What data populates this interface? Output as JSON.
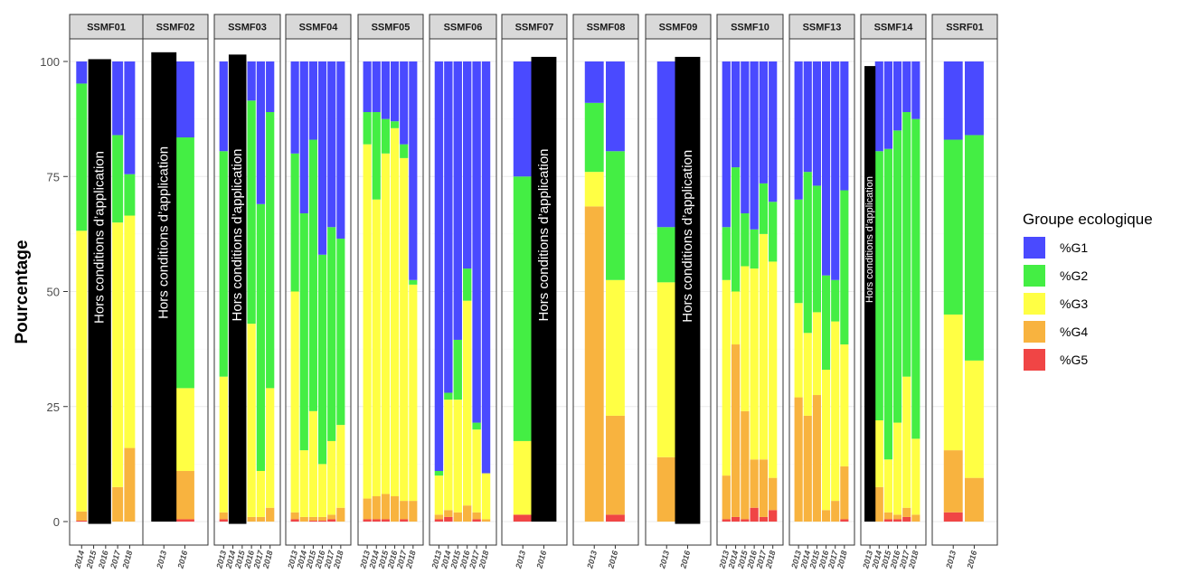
{
  "chart_data": {
    "type": "bar",
    "stacked": true,
    "faceted": true,
    "ylabel": "Pourcentage",
    "xlabel": "",
    "ylim": [
      0,
      100
    ],
    "yticks": [
      0,
      25,
      50,
      75,
      100
    ],
    "grid": true,
    "legend": {
      "title": "Groupe ecologique",
      "placement": "right",
      "entries": [
        {
          "name": "%G1",
          "color": "#4a4aff"
        },
        {
          "name": "%G2",
          "color": "#44ee44"
        },
        {
          "name": "%G3",
          "color": "#ffff44"
        },
        {
          "name": "%G4",
          "color": "#f8b33f"
        },
        {
          "name": "%G5",
          "color": "#f04545"
        }
      ]
    },
    "facets": [
      {
        "label": "SSMF01",
        "years": [
          "2014",
          "2015",
          "2016",
          "2017",
          "2018"
        ],
        "G1": [
          4.8,
          0,
          0,
          16,
          24.5
        ],
        "G2": [
          32,
          0,
          0,
          19,
          9
        ],
        "G3": [
          61,
          0,
          0,
          57.5,
          50.5
        ],
        "G4": [
          2,
          0,
          0,
          7.5,
          16
        ],
        "G5": [
          0.2,
          0,
          0,
          0,
          0
        ],
        "overlay": {
          "text": "Hors conditions d’application",
          "from": 1,
          "to": 2,
          "top": 100.5,
          "bottom": -0.5
        }
      },
      {
        "label": "SSMF02",
        "years": [
          "2013",
          "2016"
        ],
        "G1": [
          0,
          16.5
        ],
        "G2": [
          0,
          54.5
        ],
        "G3": [
          0,
          18
        ],
        "G4": [
          0,
          10.5
        ],
        "G5": [
          0,
          0.5
        ],
        "overlay": {
          "text": "Hors conditions d’application",
          "from": 0,
          "to": 0,
          "top": 102,
          "bottom": 0
        }
      },
      {
        "label": "SSMF03",
        "years": [
          "2013",
          "2014",
          "2015",
          "2016",
          "2017",
          "2018"
        ],
        "G1": [
          19.5,
          0,
          0,
          8.5,
          31,
          11
        ],
        "G2": [
          49,
          0,
          0,
          48.5,
          58,
          60
        ],
        "G3": [
          29.5,
          0,
          0,
          42,
          10,
          26
        ],
        "G4": [
          1.5,
          0,
          0,
          1,
          1,
          3
        ],
        "G5": [
          0.5,
          0,
          0,
          0,
          0,
          0
        ],
        "overlay": {
          "text": "Hors conditions d’application",
          "from": 1,
          "to": 2,
          "top": 101.5,
          "bottom": -0.5
        }
      },
      {
        "label": "SSMF04",
        "years": [
          "2013",
          "2014",
          "2015",
          "2016",
          "2017",
          "2018"
        ],
        "G1": [
          20,
          33,
          17,
          42,
          36,
          38.5
        ],
        "G2": [
          30,
          51.5,
          59,
          45.5,
          46.5,
          40.5
        ],
        "G3": [
          48,
          14.5,
          23,
          11.5,
          16,
          18
        ],
        "G4": [
          1.5,
          1,
          0.8,
          0.8,
          1,
          3
        ],
        "G5": [
          0.5,
          0,
          0.2,
          0.2,
          0.5,
          0
        ],
        "overlay": null
      },
      {
        "label": "SSMF05",
        "years": [
          "2013",
          "2014",
          "2015",
          "2016",
          "2017",
          "2018"
        ],
        "G1": [
          11,
          11,
          12.5,
          13,
          18,
          47.5
        ],
        "G2": [
          7,
          19,
          7.5,
          1.5,
          3,
          1
        ],
        "G3": [
          77,
          64.5,
          74,
          80,
          74.5,
          47
        ],
        "G4": [
          4.5,
          5,
          5.5,
          5.5,
          4,
          4.5
        ],
        "G5": [
          0.5,
          0.5,
          0.5,
          0,
          0.5,
          0
        ],
        "overlay": null
      },
      {
        "label": "SSMF06",
        "years": [
          "2013",
          "2014",
          "2015",
          "2016",
          "2017",
          "2018"
        ],
        "G1": [
          89,
          72,
          60.5,
          45,
          78.5,
          89.5
        ],
        "G2": [
          1,
          1.5,
          13,
          7,
          1.5,
          0
        ],
        "G3": [
          8.5,
          24,
          24.5,
          44.5,
          18,
          10
        ],
        "G4": [
          1,
          1.5,
          2,
          3.5,
          1.5,
          0.5
        ],
        "G5": [
          0.5,
          1,
          0,
          0,
          0.5,
          0
        ],
        "overlay": null
      },
      {
        "label": "SSMF07",
        "years": [
          "2013",
          "2016"
        ],
        "G1": [
          25,
          0
        ],
        "G2": [
          57.5,
          0
        ],
        "G3": [
          16,
          0
        ],
        "G4": [
          0,
          0
        ],
        "G5": [
          1.5,
          0
        ],
        "overlay": {
          "text": "Hors conditions d’application",
          "from": 1,
          "to": 1,
          "top": 101,
          "bottom": 0
        }
      },
      {
        "label": "SSMF08",
        "years": [
          "2013",
          "2016"
        ],
        "G1": [
          9,
          19.5
        ],
        "G2": [
          15,
          28
        ],
        "G3": [
          7.5,
          29.5
        ],
        "G4": [
          68.5,
          21.5
        ],
        "G5": [
          0,
          1.5
        ],
        "overlay": null
      },
      {
        "label": "SSMF09",
        "years": [
          "2013",
          "2016"
        ],
        "G1": [
          36,
          0
        ],
        "G2": [
          12,
          0
        ],
        "G3": [
          38,
          0
        ],
        "G4": [
          14,
          0
        ],
        "G5": [
          0,
          0
        ],
        "overlay": {
          "text": "Hors conditions d’application",
          "from": 1,
          "to": 1,
          "top": 101,
          "bottom": -0.5
        }
      },
      {
        "label": "SSMF10",
        "years": [
          "2013",
          "2014",
          "2015",
          "2016",
          "2017",
          "2018"
        ],
        "G1": [
          36,
          23,
          33,
          36.5,
          26.5,
          30.5
        ],
        "G2": [
          11.5,
          27,
          11.5,
          8.5,
          11,
          13
        ],
        "G3": [
          42.5,
          11.5,
          31.5,
          41.5,
          49,
          47
        ],
        "G4": [
          9.5,
          37.5,
          23.5,
          10.5,
          12.5,
          7
        ],
        "G5": [
          0.5,
          1,
          0.5,
          3,
          1,
          2.5
        ],
        "overlay": null
      },
      {
        "label": "SSMF13",
        "years": [
          "2013",
          "2014",
          "2015",
          "2016",
          "2017",
          "2018"
        ],
        "G1": [
          30,
          24,
          27,
          46.5,
          47.5,
          28
        ],
        "G2": [
          22.5,
          35,
          27.5,
          20.5,
          9,
          33.5
        ],
        "G3": [
          20.5,
          18,
          18,
          30.5,
          39,
          26.5
        ],
        "G4": [
          27,
          23,
          27.5,
          2.5,
          4.5,
          11.5
        ],
        "G5": [
          0,
          0,
          0,
          0,
          0,
          0.5
        ],
        "overlay": null
      },
      {
        "label": "SSMF14",
        "years": [
          "2013",
          "2014",
          "2015",
          "2016",
          "2017",
          "2018"
        ],
        "G1": [
          0,
          19.5,
          19,
          15,
          11,
          12.5
        ],
        "G2": [
          0,
          58.5,
          67.5,
          63.5,
          57.5,
          69.5
        ],
        "G3": [
          0,
          14.5,
          11.5,
          20,
          28.5,
          16.5
        ],
        "G4": [
          0,
          7.5,
          1.5,
          1,
          2,
          1.5
        ],
        "G5": [
          0,
          0,
          0.5,
          0.5,
          1,
          0
        ],
        "overlay": {
          "text": "Hors conditions d’application",
          "from": 0,
          "to": 0,
          "top": 99,
          "bottom": 0
        }
      },
      {
        "label": "SSRF01",
        "years": [
          "2013",
          "2016"
        ],
        "G1": [
          17,
          16
        ],
        "G2": [
          38,
          49
        ],
        "G3": [
          29.5,
          25.5
        ],
        "G4": [
          13.5,
          9.5
        ],
        "G5": [
          2,
          0
        ],
        "overlay": null
      }
    ]
  }
}
